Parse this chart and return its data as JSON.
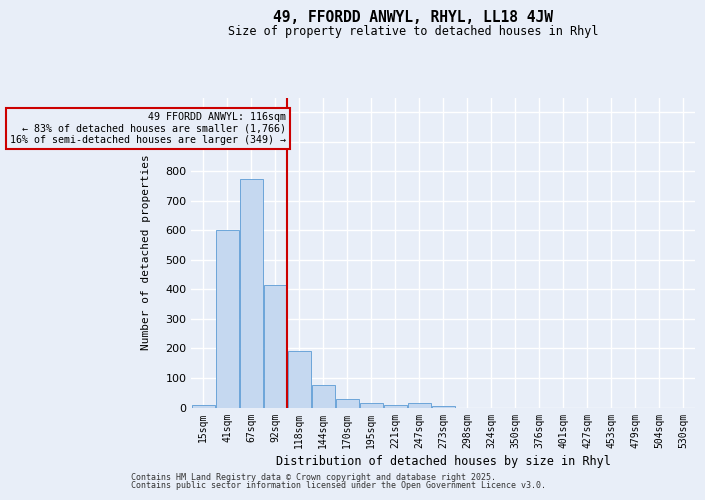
{
  "title_line1": "49, FFORDD ANWYL, RHYL, LL18 4JW",
  "title_line2": "Size of property relative to detached houses in Rhyl",
  "xlabel": "Distribution of detached houses by size in Rhyl",
  "ylabel": "Number of detached properties",
  "categories": [
    "15sqm",
    "41sqm",
    "67sqm",
    "92sqm",
    "118sqm",
    "144sqm",
    "170sqm",
    "195sqm",
    "221sqm",
    "247sqm",
    "273sqm",
    "298sqm",
    "324sqm",
    "350sqm",
    "376sqm",
    "401sqm",
    "427sqm",
    "453sqm",
    "479sqm",
    "504sqm",
    "530sqm"
  ],
  "values": [
    10,
    600,
    775,
    415,
    190,
    75,
    30,
    15,
    10,
    15,
    5,
    0,
    0,
    0,
    0,
    0,
    0,
    0,
    0,
    0,
    0
  ],
  "bar_color": "#c5d8f0",
  "bar_edge_color": "#5b9bd5",
  "vline_x_idx": 4,
  "vline_color": "#cc0000",
  "annotation_text": "49 FFORDD ANWYL: 116sqm\n← 83% of detached houses are smaller (1,766)\n16% of semi-detached houses are larger (349) →",
  "annotation_box_color": "#cc0000",
  "background_color": "#e8eef8",
  "grid_color": "#ffffff",
  "ylim": [
    0,
    1050
  ],
  "yticks": [
    0,
    100,
    200,
    300,
    400,
    500,
    600,
    700,
    800,
    900,
    1000
  ],
  "footer_line1": "Contains HM Land Registry data © Crown copyright and database right 2025.",
  "footer_line2": "Contains public sector information licensed under the Open Government Licence v3.0."
}
